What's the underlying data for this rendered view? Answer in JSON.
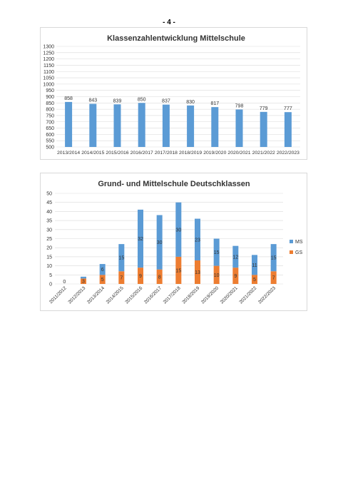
{
  "page": {
    "number": "- 4 -"
  },
  "chart_data": [
    {
      "type": "bar",
      "title": "Klassenzahlentwicklung Mittelschule",
      "categories": [
        "2013/2014",
        "2014/2015",
        "2015/2016",
        "2016/2017",
        "2017/2018",
        "2018/2019",
        "2019/2020",
        "2020/2021",
        "2021/2022",
        "2022/2023"
      ],
      "values": [
        858,
        843,
        839,
        850,
        837,
        830,
        817,
        798,
        779,
        777
      ],
      "data_labels": [
        "858",
        "843",
        "839",
        "850",
        "837",
        "830",
        "817",
        "798",
        "779",
        "777"
      ],
      "yticks": [
        "500",
        "550",
        "600",
        "650",
        "700",
        "750",
        "800",
        "850",
        "900",
        "950",
        "1000",
        "1050",
        "1100",
        "1150",
        "1200",
        "1250",
        "1300"
      ],
      "ylim": [
        500,
        1300
      ],
      "color": "#5b9bd5",
      "grid": true
    },
    {
      "type": "stacked-bar",
      "title": "Grund- und Mittelschule Deutschklassen",
      "categories": [
        "2011/2012",
        "2012/2013",
        "2013/2014",
        "2014/2015",
        "2015/2016",
        "2016/2017",
        "2017/2018",
        "2018/2019",
        "2019/2020",
        "2020/2021",
        "2021/2022",
        "2022/2023"
      ],
      "series": [
        {
          "name": "GS",
          "color": "#ed7d31",
          "values": [
            0,
            3,
            5,
            7,
            9,
            8,
            15,
            13,
            10,
            9,
            5,
            7
          ],
          "labels": [
            "0",
            "3",
            "5",
            "7",
            "9",
            "8",
            "15",
            "13",
            "10",
            "9",
            "5",
            "7"
          ]
        },
        {
          "name": "MS",
          "color": "#5b9bd5",
          "values": [
            0,
            1,
            6,
            15,
            32,
            30,
            30,
            23,
            15,
            12,
            11,
            15
          ],
          "labels": [
            "",
            "",
            "6",
            "15",
            "32",
            "30",
            "30",
            "23",
            "15",
            "12",
            "11",
            "15"
          ]
        }
      ],
      "yticks": [
        "0",
        "5",
        "10",
        "15",
        "20",
        "25",
        "30",
        "35",
        "40",
        "45",
        "50"
      ],
      "ylim": [
        0,
        50
      ],
      "legend": "right",
      "grid": true
    }
  ]
}
